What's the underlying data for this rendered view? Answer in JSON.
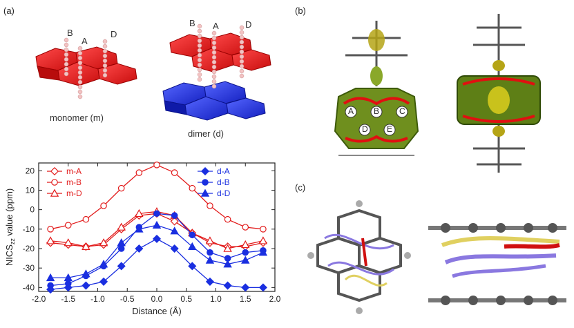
{
  "figure": {
    "panels": {
      "a": "(a)",
      "b": "(b)",
      "c": "(c)"
    },
    "monomer_label": "monomer (m)",
    "dimer_label": "dimer (d)",
    "probe_letters": {
      "B": "B",
      "A": "A",
      "D": "D"
    },
    "ring_letters": [
      "A",
      "B",
      "C",
      "D",
      "E"
    ]
  },
  "colors": {
    "monomer": "#e21b1b",
    "dimer": "#1a2fe0",
    "probe": "#f3c3c3",
    "isosurface": "#7a9a1a",
    "current": "#e01010"
  },
  "chart_data": {
    "type": "line",
    "xlabel": "Distance (Å)",
    "ylabel_main": "NICS",
    "ylabel_sub": "zz",
    "ylabel_rest": " value (ppm)",
    "xlim": [
      -2.0,
      2.0
    ],
    "ylim": [
      -42,
      24
    ],
    "xticks": [
      -2.0,
      -1.5,
      -1.0,
      -0.5,
      0.0,
      0.5,
      1.0,
      1.5,
      2.0
    ],
    "xtick_labels": [
      "-2.0",
      "-1.5",
      "-1.0",
      "-0.5",
      "0.0",
      "0.5",
      "1.0",
      "1.5",
      "2.0"
    ],
    "yticks": [
      20,
      10,
      0,
      -10,
      -20,
      -30,
      -40
    ],
    "ytick_labels": [
      "20",
      "10",
      "0",
      "-10",
      "-20",
      "-30",
      "-40"
    ],
    "x": [
      -1.8,
      -1.5,
      -1.2,
      -0.9,
      -0.6,
      -0.3,
      0.0,
      0.3,
      0.6,
      0.9,
      1.2,
      1.5,
      1.8
    ],
    "series": [
      {
        "name": "m-A",
        "color": "#e21b1b",
        "marker": "diamond-open",
        "values": [
          -17,
          -18,
          -19,
          -18,
          -10,
          -3,
          -2,
          -6,
          -12,
          -17,
          -19,
          -19,
          -17
        ]
      },
      {
        "name": "m-B",
        "color": "#e21b1b",
        "marker": "circle-open",
        "values": [
          -10,
          -8,
          -5,
          2,
          11,
          19,
          23,
          19,
          11,
          2,
          -5,
          -9,
          -10
        ]
      },
      {
        "name": "m-D",
        "color": "#e21b1b",
        "marker": "triangle-open",
        "values": [
          -16,
          -17,
          -19,
          -17,
          -9,
          -2,
          -1,
          -3,
          -12,
          -16,
          -20,
          -18,
          -16
        ]
      },
      {
        "name": "d-A",
        "color": "#1a2fe0",
        "marker": "diamond-filled",
        "values": [
          -41,
          -40,
          -39,
          -37,
          -29,
          -20,
          -15,
          -20,
          -29,
          -37,
          -39,
          -40,
          -40
        ]
      },
      {
        "name": "d-B",
        "color": "#1a2fe0",
        "marker": "circle-filled",
        "values": [
          -39,
          -38,
          -34,
          -29,
          -20,
          -9,
          -2,
          -3,
          -13,
          -22,
          -25,
          -22,
          -21
        ]
      },
      {
        "name": "d-D",
        "color": "#1a2fe0",
        "marker": "triangle-filled",
        "values": [
          -35,
          -35,
          -33,
          -28,
          -17,
          -10,
          -8,
          -11,
          -19,
          -26,
          -28,
          -26,
          -22
        ]
      }
    ],
    "grid": false,
    "legend": "top, two columns (left: m-A, m-B, m-D; right: d-A, d-B, d-D)"
  }
}
